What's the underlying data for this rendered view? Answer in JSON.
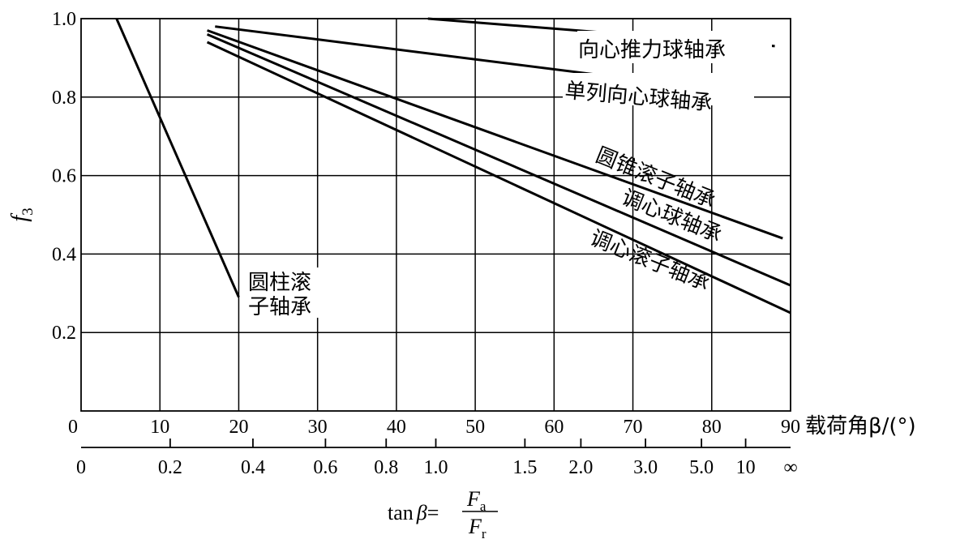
{
  "chart_data": {
    "type": "line",
    "xlabel": "载荷角β/(°)",
    "ylabel": "f3",
    "ylabel_main": "f",
    "ylabel_sub": "3",
    "xlim": [
      0,
      90
    ],
    "ylim": [
      0,
      1.0
    ],
    "grid": true,
    "x_ticks": [
      "0",
      "10",
      "20",
      "30",
      "40",
      "50",
      "60",
      "70",
      "80",
      "90"
    ],
    "y_ticks": [
      "0.2",
      "0.4",
      "0.6",
      "0.8",
      "1.0"
    ],
    "secondary_axis": {
      "label": "tanβ=Fa/Fr",
      "label_prefix": "tan",
      "label_beta": "β",
      "label_eq": "=",
      "numerator_main": "F",
      "numerator_sub": "a",
      "denominator_main": "F",
      "denominator_sub": "r",
      "ticks": [
        {
          "label": "0",
          "beta": 0
        },
        {
          "label": "0.2",
          "beta": 11.3
        },
        {
          "label": "0.4",
          "beta": 21.8
        },
        {
          "label": "0.6",
          "beta": 31
        },
        {
          "label": "0.8",
          "beta": 38.7
        },
        {
          "label": "1.0",
          "beta": 45
        },
        {
          "label": "1.5",
          "beta": 56.3
        },
        {
          "label": "2.0",
          "beta": 63.4
        },
        {
          "label": "3.0",
          "beta": 71.6
        },
        {
          "label": "5.0",
          "beta": 78.7
        },
        {
          "label": "10",
          "beta": 84.3
        },
        {
          "label": "∞",
          "beta": 90
        }
      ]
    },
    "series": [
      {
        "name": "向心推力球轴承",
        "points": [
          [
            44,
            1.0
          ],
          [
            88,
            0.93
          ]
        ]
      },
      {
        "name": "单列向心球轴承",
        "points": [
          [
            17,
            0.98
          ],
          [
            84,
            0.81
          ]
        ]
      },
      {
        "name": "圆锥滚子轴承",
        "points": [
          [
            16,
            0.97
          ],
          [
            89,
            0.44
          ]
        ]
      },
      {
        "name": "调心球轴承",
        "points": [
          [
            16,
            0.96
          ],
          [
            90,
            0.32
          ]
        ]
      },
      {
        "name": "调心滚子轴承",
        "points": [
          [
            16,
            0.94
          ],
          [
            90,
            0.25
          ]
        ]
      },
      {
        "name": "圆柱滚子轴承",
        "name_line1": "圆柱滚",
        "name_line2": "子轴承",
        "points": [
          [
            4.5,
            1.0
          ],
          [
            20,
            0.29
          ]
        ]
      }
    ]
  }
}
